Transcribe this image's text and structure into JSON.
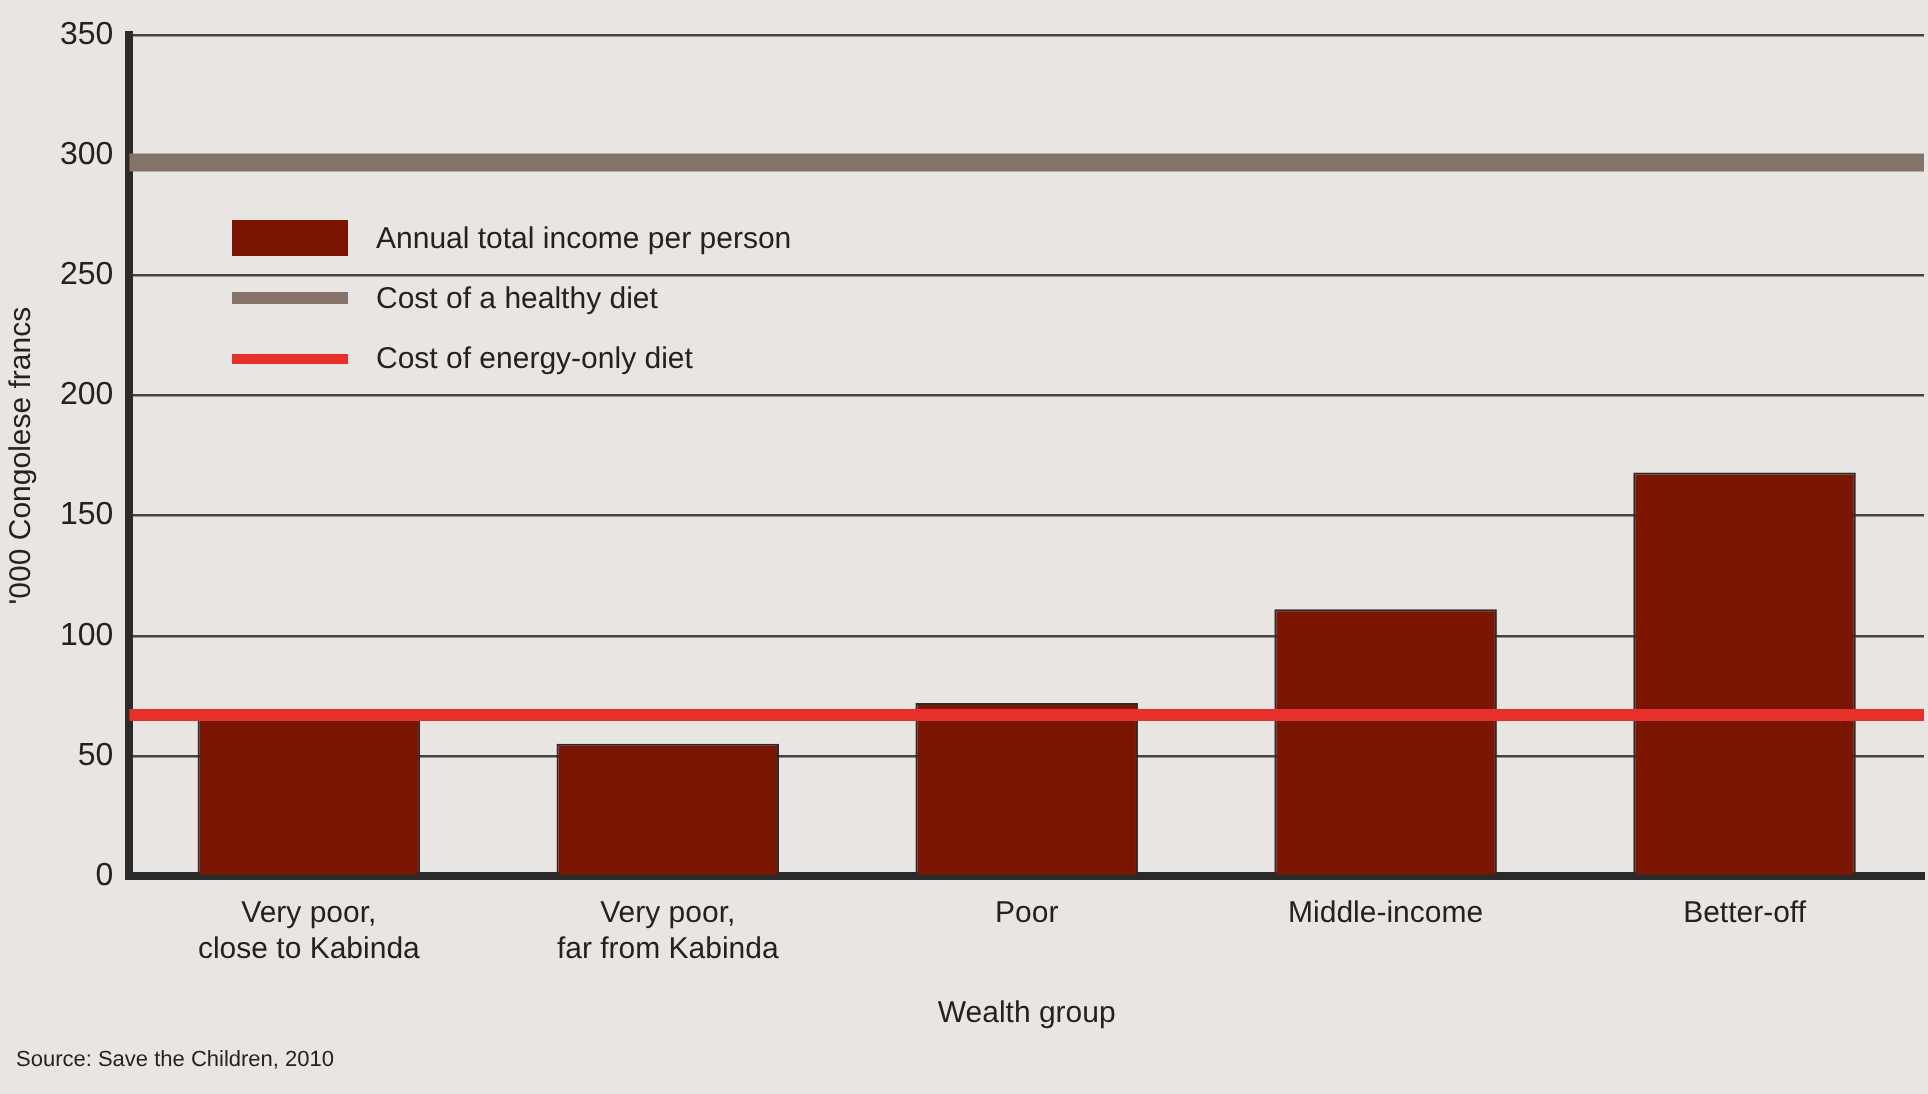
{
  "chart_data": {
    "type": "bar",
    "xlabel": "Wealth group",
    "ylabel": "'000 Congolese francs",
    "categories": [
      "Very poor,\nclose to Kabinda",
      "Very poor,\nfar from Kabinda",
      "Poor",
      "Middle-income",
      "Better-off"
    ],
    "series": [
      {
        "name": "Annual total income per person",
        "color": "#7a1502",
        "values": [
          66,
          55,
          72,
          111,
          168
        ]
      }
    ],
    "ylim": [
      0,
      350
    ],
    "yticks": [
      0,
      50,
      100,
      150,
      200,
      250,
      300,
      350
    ],
    "grid": "y",
    "legend": "top left",
    "ref_lines": [
      {
        "axis": "y",
        "value": 297,
        "label": "Cost of a healthy diet",
        "color": "#857268"
      },
      {
        "axis": "y",
        "value": 67,
        "label": "Cost of energy-only diet",
        "color": "#e8302a"
      }
    ],
    "annotations": [
      "Source: Save the Children, 2010"
    ]
  }
}
